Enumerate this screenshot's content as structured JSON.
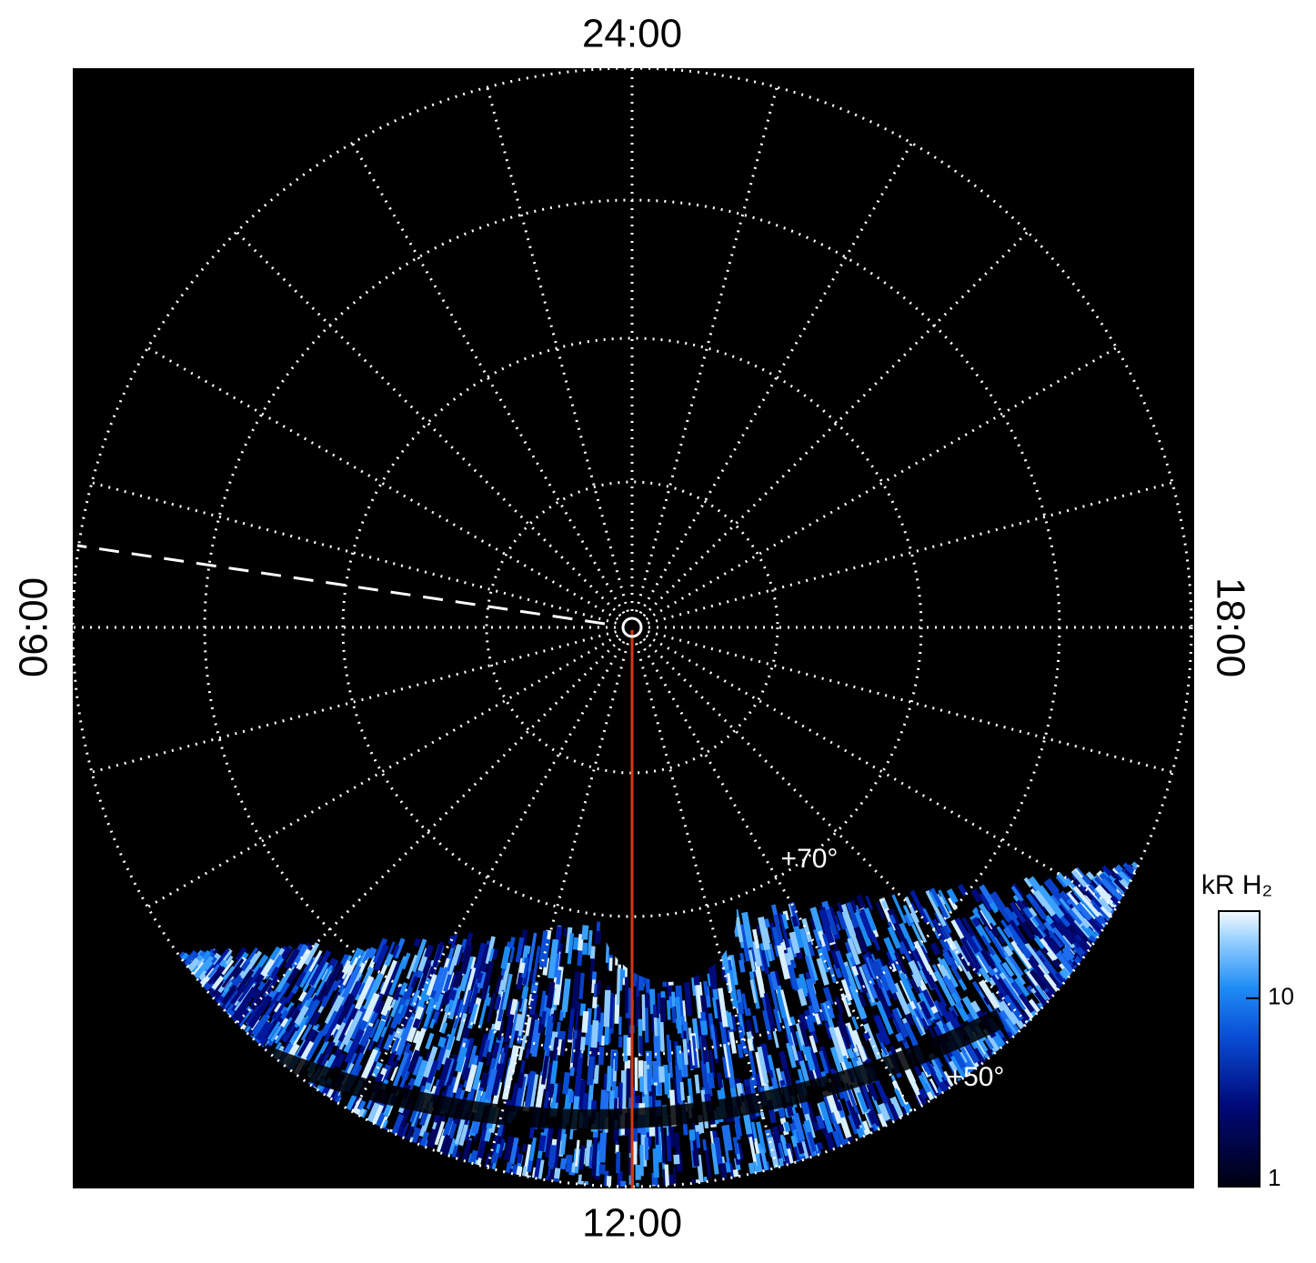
{
  "labels": {
    "top": "24:00",
    "bottom": "12:00",
    "left": "06:00",
    "right": "18:00"
  },
  "latitude_labels": [
    "+70°",
    "+50°"
  ],
  "colorbar": {
    "label": "kR H₂",
    "scale": "log",
    "lim": [
      1,
      29
    ],
    "ticks": [
      1,
      10
    ]
  }
}
